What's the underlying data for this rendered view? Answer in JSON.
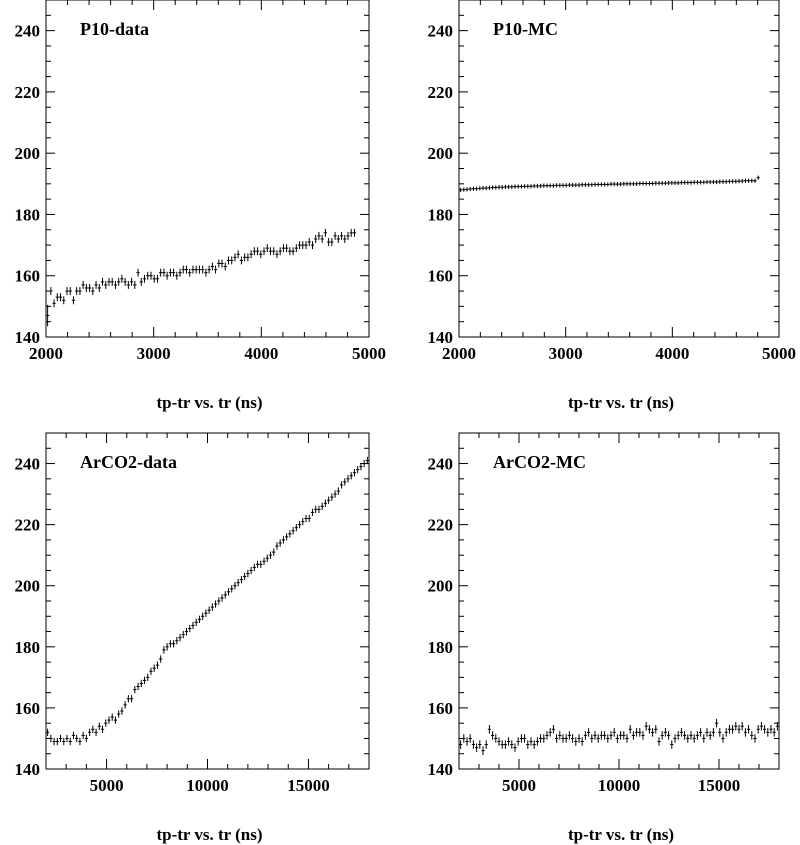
{
  "chart_data": [
    {
      "type": "scatter",
      "title": "P10-data",
      "xlabel": "tp-tr vs. tr (ns)",
      "ylabel": "",
      "xlim": [
        2000,
        5000
      ],
      "ylim": [
        140,
        250
      ],
      "xticks": [
        2000,
        3000,
        4000,
        5000
      ],
      "yticks": [
        140,
        160,
        180,
        200,
        220,
        240
      ],
      "grid": false,
      "series": [
        {
          "x_start": 2000,
          "x_step": 30,
          "y": [
            147,
            155,
            151,
            153,
            153,
            152,
            155,
            155,
            152,
            155,
            155,
            157,
            156,
            156,
            155,
            157,
            156,
            158,
            157,
            158,
            158,
            157,
            158,
            159,
            158,
            157,
            158,
            157,
            161,
            158,
            159,
            160,
            160,
            159,
            159,
            161,
            161,
            160,
            161,
            161,
            160,
            161,
            162,
            162,
            161,
            162,
            162,
            162,
            162,
            161,
            162,
            163,
            162,
            164,
            164,
            163,
            165,
            165,
            166,
            167,
            165,
            166,
            166,
            167,
            168,
            168,
            167,
            168,
            169,
            168,
            168,
            167,
            168,
            169,
            169,
            168,
            168,
            169,
            170,
            170,
            170,
            171,
            170,
            172,
            173,
            172,
            174,
            171,
            171,
            173,
            172,
            173,
            172,
            173,
            174,
            174
          ],
          "yerr": 1.3
        }
      ]
    },
    {
      "type": "scatter",
      "title": "P10-MC",
      "xlabel": "tp-tr vs. tr (ns)",
      "ylabel": "",
      "xlim": [
        2000,
        5000
      ],
      "ylim": [
        140,
        250
      ],
      "xticks": [
        2000,
        3000,
        4000,
        5000
      ],
      "yticks": [
        140,
        160,
        180,
        200,
        220,
        240
      ],
      "grid": false,
      "series": [
        {
          "x_start": 2000,
          "x_step": 30,
          "y": [
            188.0,
            188.1,
            188.2,
            188.3,
            188.4,
            188.4,
            188.5,
            188.6,
            188.6,
            188.7,
            188.8,
            188.8,
            188.9,
            188.9,
            189.0,
            189.0,
            189.0,
            189.1,
            189.1,
            189.1,
            189.2,
            189.2,
            189.2,
            189.3,
            189.3,
            189.3,
            189.4,
            189.4,
            189.4,
            189.4,
            189.5,
            189.5,
            189.5,
            189.5,
            189.6,
            189.6,
            189.6,
            189.6,
            189.7,
            189.7,
            189.7,
            189.7,
            189.8,
            189.8,
            189.8,
            189.8,
            189.8,
            189.9,
            189.9,
            189.9,
            189.9,
            190.0,
            190.0,
            190.0,
            190.0,
            190.0,
            190.1,
            190.1,
            190.1,
            190.1,
            190.1,
            190.2,
            190.2,
            190.2,
            190.2,
            190.3,
            190.3,
            190.3,
            190.3,
            190.4,
            190.4,
            190.4,
            190.4,
            190.5,
            190.5,
            190.5,
            190.5,
            190.6,
            190.6,
            190.6,
            190.6,
            190.7,
            190.7,
            190.7,
            190.8,
            190.8,
            190.8,
            190.9,
            190.9,
            191.0,
            191.0,
            191.0,
            191.0,
            192.0
          ],
          "yerr": 0.7
        }
      ]
    },
    {
      "type": "scatter",
      "title": "ArCO2-data",
      "xlabel": "tp-tr vs. tr (ns)",
      "ylabel": "",
      "xlim": [
        2000,
        18000
      ],
      "ylim": [
        140,
        250
      ],
      "xticks": [
        5000,
        10000,
        15000
      ],
      "yticks": [
        140,
        160,
        180,
        200,
        220,
        240
      ],
      "grid": false,
      "series": [
        {
          "x_start": 2000,
          "x_step": 160,
          "y": [
            152,
            150,
            149,
            149,
            150,
            149,
            150,
            149,
            151,
            150,
            149,
            151,
            150,
            152,
            153,
            152,
            154,
            153,
            155,
            156,
            157,
            156,
            158,
            159,
            161,
            163,
            163,
            166,
            167,
            168,
            169,
            170,
            172,
            173,
            174,
            176,
            179,
            180,
            181,
            181,
            182,
            183,
            184,
            185,
            186,
            187,
            188,
            189,
            190,
            191,
            192,
            193,
            194,
            195,
            196,
            197,
            198,
            199,
            200,
            201,
            202,
            203,
            204,
            205,
            206,
            207,
            207,
            208,
            209,
            210,
            211,
            213,
            214,
            215,
            216,
            217,
            218,
            219,
            220,
            221,
            222,
            222,
            224,
            225,
            225,
            226,
            227,
            228,
            229,
            230,
            231,
            233,
            234,
            235,
            236,
            237,
            238,
            239,
            240,
            241
          ],
          "yerr": 1.2
        }
      ]
    },
    {
      "type": "scatter",
      "title": "ArCO2-MC",
      "xlabel": "tp-tr vs. tr (ns)",
      "ylabel": "",
      "xlim": [
        2000,
        18000
      ],
      "ylim": [
        140,
        250
      ],
      "xticks": [
        5000,
        10000,
        15000
      ],
      "yticks": [
        140,
        160,
        180,
        200,
        220,
        240
      ],
      "grid": false,
      "series": [
        {
          "x_start": 2000,
          "x_step": 160,
          "y": [
            148,
            150,
            149,
            150,
            148,
            147,
            148,
            146,
            148,
            153,
            151,
            150,
            149,
            148,
            148,
            149,
            148,
            147,
            149,
            150,
            150,
            148,
            149,
            148,
            149,
            150,
            150,
            151,
            152,
            153,
            150,
            151,
            150,
            150,
            151,
            150,
            149,
            150,
            149,
            151,
            152,
            150,
            151,
            150,
            151,
            151,
            150,
            151,
            152,
            150,
            151,
            151,
            150,
            153,
            151,
            152,
            152,
            151,
            154,
            153,
            152,
            153,
            149,
            151,
            152,
            151,
            148,
            150,
            151,
            152,
            151,
            150,
            151,
            150,
            151,
            152,
            150,
            152,
            151,
            152,
            155,
            152,
            150,
            152,
            153,
            153,
            154,
            153,
            154,
            152,
            153,
            151,
            150,
            153,
            154,
            153,
            152,
            153,
            152,
            154
          ],
          "yerr": 1.4
        }
      ]
    }
  ]
}
